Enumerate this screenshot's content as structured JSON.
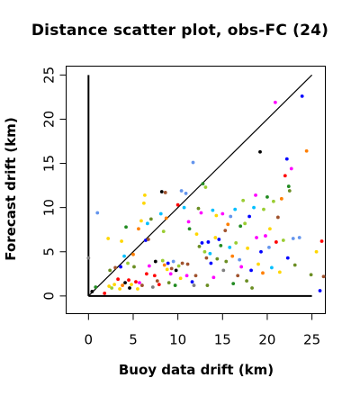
{
  "chart_data": {
    "type": "scatter",
    "title": "Distance scatter plot, obs-FC (24)",
    "xlabel": "Buoy data drift (km)",
    "ylabel": "Forecast drift (km)",
    "xlim": [
      -2.5,
      26.5
    ],
    "ylim": [
      -2,
      26
    ],
    "x_ticks": [
      0,
      5,
      10,
      15,
      20,
      25
    ],
    "y_ticks": [
      0,
      5,
      10,
      15,
      20,
      25
    ],
    "x_tick_labels": [
      "0",
      "5",
      "10",
      "15",
      "20",
      "25"
    ],
    "y_tick_labels": [
      "0",
      "5",
      "10",
      "15",
      "20",
      "25"
    ],
    "reference_lines": [
      {
        "kind": "identity",
        "from": [
          0,
          0
        ],
        "to": [
          25,
          25
        ]
      },
      {
        "kind": "x-axis",
        "from": [
          0,
          0
        ],
        "to": [
          25,
          0
        ]
      },
      {
        "kind": "y-axis",
        "from": [
          0,
          0
        ],
        "to": [
          0,
          25
        ]
      }
    ],
    "grid": false,
    "legend": "none",
    "points": [
      {
        "x": 0.0,
        "y": 4.3,
        "color": "#7f7f7f"
      },
      {
        "x": 0.4,
        "y": 0.5,
        "color": "#000000"
      },
      {
        "x": 0.8,
        "y": 1.0,
        "color": "#228b22"
      },
      {
        "x": 1.0,
        "y": 9.4,
        "color": "#6495ed"
      },
      {
        "x": 1.8,
        "y": 0.3,
        "color": "#ff0000"
      },
      {
        "x": 2.2,
        "y": 6.5,
        "color": "#ffd700"
      },
      {
        "x": 2.3,
        "y": 1.1,
        "color": "#ffd700"
      },
      {
        "x": 2.4,
        "y": 2.9,
        "color": "#6b8e23"
      },
      {
        "x": 2.6,
        "y": 0.9,
        "color": "#9acd32"
      },
      {
        "x": 2.9,
        "y": 1.3,
        "color": "#ffd700"
      },
      {
        "x": 3.0,
        "y": 3.2,
        "color": "#a0522d"
      },
      {
        "x": 3.3,
        "y": 1.9,
        "color": "#ff0000"
      },
      {
        "x": 3.5,
        "y": 0.8,
        "color": "#ffd700"
      },
      {
        "x": 3.6,
        "y": 3.3,
        "color": "#0000ff"
      },
      {
        "x": 3.7,
        "y": 6.2,
        "color": "#ffd700"
      },
      {
        "x": 3.8,
        "y": 1.2,
        "color": "#ff7f00"
      },
      {
        "x": 4.0,
        "y": 4.5,
        "color": "#00bfff"
      },
      {
        "x": 4.1,
        "y": 1.5,
        "color": "#000000"
      },
      {
        "x": 4.2,
        "y": 7.8,
        "color": "#228b22"
      },
      {
        "x": 4.4,
        "y": 3.7,
        "color": "#9acd32"
      },
      {
        "x": 4.5,
        "y": 1.8,
        "color": "#ff0000"
      },
      {
        "x": 4.6,
        "y": 0.9,
        "color": "#000000"
      },
      {
        "x": 4.8,
        "y": 1.3,
        "color": "#ffd700"
      },
      {
        "x": 5.0,
        "y": 4.7,
        "color": "#ff7f00"
      },
      {
        "x": 5.1,
        "y": 3.3,
        "color": "#6b8e23"
      },
      {
        "x": 5.3,
        "y": 1.6,
        "color": "#ff0000"
      },
      {
        "x": 5.5,
        "y": 0.8,
        "color": "#ffd700"
      },
      {
        "x": 5.6,
        "y": 7.6,
        "color": "#ff7f00"
      },
      {
        "x": 5.7,
        "y": 1.5,
        "color": "#ff00ff"
      },
      {
        "x": 5.9,
        "y": 8.5,
        "color": "#ffd700"
      },
      {
        "x": 6.0,
        "y": 1.2,
        "color": "#a0522d"
      },
      {
        "x": 6.2,
        "y": 10.5,
        "color": "#ffd700"
      },
      {
        "x": 6.3,
        "y": 11.4,
        "color": "#ffd700"
      },
      {
        "x": 6.4,
        "y": 6.3,
        "color": "#0000ff"
      },
      {
        "x": 6.5,
        "y": 2.5,
        "color": "#ff0000"
      },
      {
        "x": 6.6,
        "y": 8.2,
        "color": "#00bfff"
      },
      {
        "x": 6.7,
        "y": 6.4,
        "color": "#a0522d"
      },
      {
        "x": 6.8,
        "y": 3.4,
        "color": "#ff00ff"
      },
      {
        "x": 7.0,
        "y": 8.7,
        "color": "#6b8e23"
      },
      {
        "x": 7.2,
        "y": 1.0,
        "color": "#7f7f7f"
      },
      {
        "x": 7.4,
        "y": 2.3,
        "color": "#ff0000"
      },
      {
        "x": 7.5,
        "y": 3.9,
        "color": "#000000"
      },
      {
        "x": 7.7,
        "y": 1.7,
        "color": "#a0522d"
      },
      {
        "x": 7.9,
        "y": 1.3,
        "color": "#ff0000"
      },
      {
        "x": 8.1,
        "y": 9.3,
        "color": "#00bfff"
      },
      {
        "x": 8.2,
        "y": 11.8,
        "color": "#000000"
      },
      {
        "x": 8.3,
        "y": 4.0,
        "color": "#9acd32"
      },
      {
        "x": 8.4,
        "y": 7.3,
        "color": "#9acd32"
      },
      {
        "x": 8.5,
        "y": 3.5,
        "color": "#ff7f00"
      },
      {
        "x": 8.6,
        "y": 11.7,
        "color": "#a0522d"
      },
      {
        "x": 8.7,
        "y": 8.8,
        "color": "#ff7f00"
      },
      {
        "x": 8.8,
        "y": 3.0,
        "color": "#ffd700"
      },
      {
        "x": 8.9,
        "y": 3.7,
        "color": "#0000ff"
      },
      {
        "x": 9.0,
        "y": 1.5,
        "color": "#6b8e23"
      },
      {
        "x": 9.2,
        "y": 2.5,
        "color": "#ff00ff"
      },
      {
        "x": 9.3,
        "y": 3.1,
        "color": "#a0522d"
      },
      {
        "x": 9.5,
        "y": 3.9,
        "color": "#6495ed"
      },
      {
        "x": 9.7,
        "y": 1.2,
        "color": "#228b22"
      },
      {
        "x": 9.8,
        "y": 2.9,
        "color": "#000000"
      },
      {
        "x": 10.0,
        "y": 10.3,
        "color": "#ff0000"
      },
      {
        "x": 10.1,
        "y": 3.4,
        "color": "#9acd32"
      },
      {
        "x": 10.3,
        "y": 2.0,
        "color": "#ffd700"
      },
      {
        "x": 10.4,
        "y": 11.9,
        "color": "#6495ed"
      },
      {
        "x": 10.5,
        "y": 3.7,
        "color": "#a0522d"
      },
      {
        "x": 10.7,
        "y": 10.0,
        "color": "#00bfff"
      },
      {
        "x": 10.9,
        "y": 11.6,
        "color": "#6495ed"
      },
      {
        "x": 11.0,
        "y": 2.3,
        "color": "#ff00ff"
      },
      {
        "x": 11.1,
        "y": 3.6,
        "color": "#a0522d"
      },
      {
        "x": 11.2,
        "y": 8.4,
        "color": "#ff00ff"
      },
      {
        "x": 11.3,
        "y": 7.6,
        "color": "#228b22"
      },
      {
        "x": 11.6,
        "y": 1.6,
        "color": "#0000ff"
      },
      {
        "x": 11.7,
        "y": 15.1,
        "color": "#6495ed"
      },
      {
        "x": 11.8,
        "y": 1.2,
        "color": "#7f7f7f"
      },
      {
        "x": 12.0,
        "y": 2.3,
        "color": "#a0522d"
      },
      {
        "x": 12.1,
        "y": 7.0,
        "color": "#ffd700"
      },
      {
        "x": 12.3,
        "y": 9.9,
        "color": "#6b8e23"
      },
      {
        "x": 12.4,
        "y": 5.6,
        "color": "#6b8e23"
      },
      {
        "x": 12.6,
        "y": 9.4,
        "color": "#ff00ff"
      },
      {
        "x": 12.7,
        "y": 6.0,
        "color": "#0000ff"
      },
      {
        "x": 12.8,
        "y": 12.7,
        "color": "#228b22"
      },
      {
        "x": 13.0,
        "y": 5.0,
        "color": "#9acd32"
      },
      {
        "x": 13.1,
        "y": 12.3,
        "color": "#9acd32"
      },
      {
        "x": 13.2,
        "y": 4.3,
        "color": "#a0522d"
      },
      {
        "x": 13.3,
        "y": 1.2,
        "color": "#6b8e23"
      },
      {
        "x": 13.4,
        "y": 6.1,
        "color": "#0000ff"
      },
      {
        "x": 13.6,
        "y": 4.8,
        "color": "#00bfff"
      },
      {
        "x": 13.7,
        "y": 3.7,
        "color": "#0000ff"
      },
      {
        "x": 13.9,
        "y": 9.7,
        "color": "#00bfff"
      },
      {
        "x": 14.0,
        "y": 2.1,
        "color": "#ff00ff"
      },
      {
        "x": 14.2,
        "y": 6.6,
        "color": "#ffd700"
      },
      {
        "x": 14.3,
        "y": 9.1,
        "color": "#ffd700"
      },
      {
        "x": 14.4,
        "y": 4.2,
        "color": "#6b8e23"
      },
      {
        "x": 14.6,
        "y": 6.4,
        "color": "#0000ff"
      },
      {
        "x": 14.8,
        "y": 5.7,
        "color": "#228b22"
      },
      {
        "x": 15.0,
        "y": 9.3,
        "color": "#ff00ff"
      },
      {
        "x": 15.1,
        "y": 2.9,
        "color": "#7f7f7f"
      },
      {
        "x": 15.3,
        "y": 7.4,
        "color": "#a0522d"
      },
      {
        "x": 15.4,
        "y": 3.9,
        "color": "#6b8e23"
      },
      {
        "x": 15.6,
        "y": 8.1,
        "color": "#ff7f00"
      },
      {
        "x": 15.8,
        "y": 5.5,
        "color": "#00bfff"
      },
      {
        "x": 15.9,
        "y": 9.0,
        "color": "#6495ed"
      },
      {
        "x": 16.1,
        "y": 4.5,
        "color": "#ff7f00"
      },
      {
        "x": 16.2,
        "y": 1.4,
        "color": "#228b22"
      },
      {
        "x": 16.4,
        "y": 9.8,
        "color": "#00bfff"
      },
      {
        "x": 16.5,
        "y": 6.0,
        "color": "#9acd32"
      },
      {
        "x": 16.7,
        "y": 2.3,
        "color": "#a0522d"
      },
      {
        "x": 16.9,
        "y": 4.1,
        "color": "#6495ed"
      },
      {
        "x": 17.0,
        "y": 7.9,
        "color": "#228b22"
      },
      {
        "x": 17.1,
        "y": 3.3,
        "color": "#ff00ff"
      },
      {
        "x": 17.3,
        "y": 10.8,
        "color": "#9acd32"
      },
      {
        "x": 17.5,
        "y": 8.2,
        "color": "#9acd32"
      },
      {
        "x": 17.7,
        "y": 1.7,
        "color": "#6b8e23"
      },
      {
        "x": 17.8,
        "y": 5.4,
        "color": "#ffd700"
      },
      {
        "x": 18.0,
        "y": 9.0,
        "color": "#0000ff"
      },
      {
        "x": 18.2,
        "y": 2.9,
        "color": "#0000ff"
      },
      {
        "x": 18.3,
        "y": 0.9,
        "color": "#6b8e23"
      },
      {
        "x": 18.5,
        "y": 10.0,
        "color": "#00bfff"
      },
      {
        "x": 18.7,
        "y": 11.4,
        "color": "#ff00ff"
      },
      {
        "x": 18.8,
        "y": 6.6,
        "color": "#ff00ff"
      },
      {
        "x": 19.0,
        "y": 3.6,
        "color": "#ffd700"
      },
      {
        "x": 19.2,
        "y": 16.3,
        "color": "#000000"
      },
      {
        "x": 19.3,
        "y": 5.0,
        "color": "#0000ff"
      },
      {
        "x": 19.5,
        "y": 2.6,
        "color": "#ff7f00"
      },
      {
        "x": 19.6,
        "y": 9.8,
        "color": "#9acd32"
      },
      {
        "x": 19.8,
        "y": 6.8,
        "color": "#ff00ff"
      },
      {
        "x": 20.0,
        "y": 11.2,
        "color": "#228b22"
      },
      {
        "x": 20.2,
        "y": 5.5,
        "color": "#6495ed"
      },
      {
        "x": 20.3,
        "y": 7.6,
        "color": "#ffd700"
      },
      {
        "x": 20.5,
        "y": 3.2,
        "color": "#00bfff"
      },
      {
        "x": 20.7,
        "y": 10.7,
        "color": "#9acd32"
      },
      {
        "x": 20.9,
        "y": 21.9,
        "color": "#ff00ff"
      },
      {
        "x": 21.0,
        "y": 6.1,
        "color": "#ff0000"
      },
      {
        "x": 21.2,
        "y": 8.9,
        "color": "#a0522d"
      },
      {
        "x": 21.4,
        "y": 2.7,
        "color": "#ffd700"
      },
      {
        "x": 21.6,
        "y": 11.0,
        "color": "#ff7f00"
      },
      {
        "x": 21.8,
        "y": 6.3,
        "color": "#9acd32"
      },
      {
        "x": 22.0,
        "y": 13.6,
        "color": "#ff0000"
      },
      {
        "x": 22.2,
        "y": 15.5,
        "color": "#0000ff"
      },
      {
        "x": 22.3,
        "y": 4.3,
        "color": "#0000ff"
      },
      {
        "x": 22.4,
        "y": 12.4,
        "color": "#228b22"
      },
      {
        "x": 22.5,
        "y": 11.9,
        "color": "#6b8e23"
      },
      {
        "x": 22.7,
        "y": 14.4,
        "color": "#ff00ff"
      },
      {
        "x": 22.9,
        "y": 6.5,
        "color": "#6495ed"
      },
      {
        "x": 23.1,
        "y": 3.5,
        "color": "#6b8e23"
      },
      {
        "x": 23.6,
        "y": 6.6,
        "color": "#6495ed"
      },
      {
        "x": 23.9,
        "y": 22.6,
        "color": "#0000ff"
      },
      {
        "x": 24.4,
        "y": 16.4,
        "color": "#ff7f00"
      },
      {
        "x": 24.9,
        "y": 2.4,
        "color": "#6b8e23"
      },
      {
        "x": 25.5,
        "y": 5.0,
        "color": "#ffd700"
      },
      {
        "x": 25.9,
        "y": 0.6,
        "color": "#0000ff"
      },
      {
        "x": 26.1,
        "y": 6.2,
        "color": "#ff0000"
      },
      {
        "x": 26.3,
        "y": 2.2,
        "color": "#a0522d"
      }
    ]
  }
}
